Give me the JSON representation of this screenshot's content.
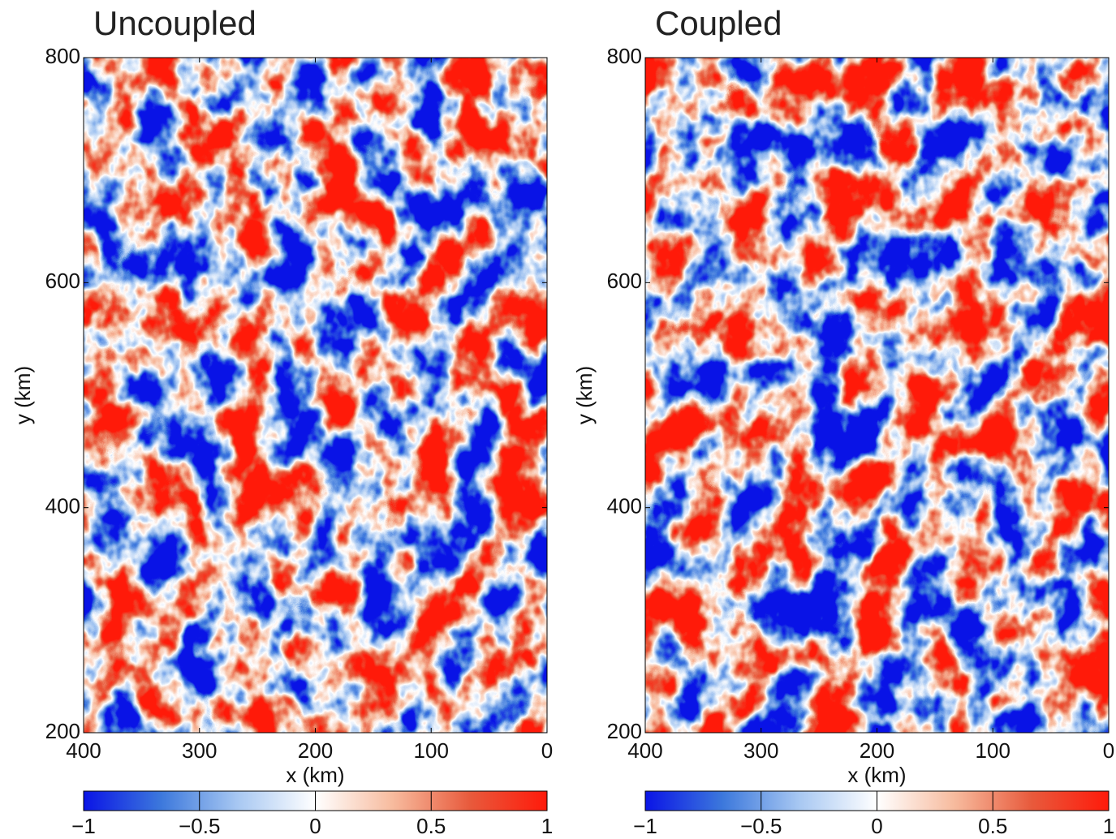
{
  "chart_data": [
    {
      "type": "contour",
      "title": "Uncoupled",
      "xlabel": "x (km)",
      "ylabel": "y (km)",
      "xlim": [
        400,
        0
      ],
      "ylim": [
        200,
        800
      ],
      "xticks": [
        400,
        300,
        200,
        100,
        0
      ],
      "yticks": [
        200,
        400,
        600,
        800
      ],
      "clim": [
        -1,
        1
      ],
      "cticks": [
        {
          "value": -1,
          "label": "−1"
        },
        {
          "value": -0.5,
          "label": "−0.5"
        },
        0,
        0.5,
        {
          "value": 1,
          "label": "1"
        }
      ],
      "colormap": [
        "#0a14e6",
        "#3c78dc",
        "#a8c8f2",
        "#ffffff",
        "#f7bb9e",
        "#e85a3c",
        "#ff1a0a"
      ]
    },
    {
      "type": "contour",
      "title": "Coupled",
      "xlabel": "x (km)",
      "ylabel": "y (km)",
      "xlim": [
        400,
        0
      ],
      "ylim": [
        200,
        800
      ],
      "xticks": [
        400,
        300,
        200,
        100,
        0
      ],
      "yticks": [
        200,
        400,
        600,
        800
      ],
      "clim": [
        -1,
        1
      ],
      "cticks": [
        {
          "value": -1,
          "label": "−1"
        },
        {
          "value": -0.5,
          "label": "−0.5"
        },
        0,
        0.5,
        {
          "value": 1,
          "label": "1"
        }
      ],
      "colormap": [
        "#0a14e6",
        "#3c78dc",
        "#a8c8f2",
        "#ffffff",
        "#f7bb9e",
        "#e85a3c",
        "#ff1a0a"
      ]
    }
  ]
}
